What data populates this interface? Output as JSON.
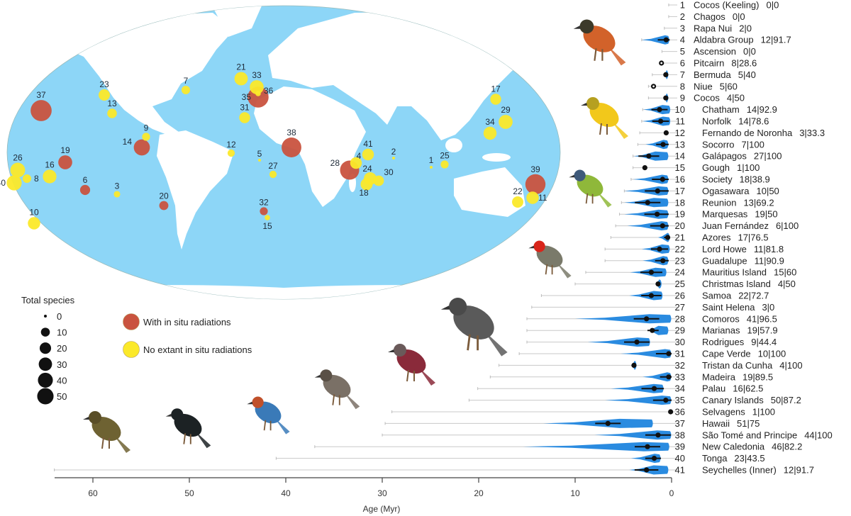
{
  "colors": {
    "ocean": "#8dd6f7",
    "land": "#ffffff",
    "radiation": "#c9533f",
    "no_radiation": "#fbe92a",
    "violin": "#2a8be0",
    "whisker": "#c8c8c8"
  },
  "legend": {
    "size_title": "Total species",
    "size_levels": [
      "0",
      "10",
      "20",
      "30",
      "40",
      "50"
    ],
    "color_items": [
      {
        "label": "With in situ radiations",
        "color": "#c9533f"
      },
      {
        "label": "No extant in situ radiations",
        "color": "#fbe92a"
      }
    ]
  },
  "chart_data": {
    "type": "violin",
    "xlabel": "Age (Myr)",
    "xlim": [
      64,
      0
    ],
    "xticks": [
      "60",
      "50",
      "40",
      "30",
      "20",
      "10",
      "0"
    ],
    "islands": [
      {
        "n": "1",
        "name": "Cocos (Keeling)",
        "stat": "0|0",
        "total": 0,
        "radiation": false,
        "max_age": 0.3,
        "violin": null,
        "median": null
      },
      {
        "n": "2",
        "name": "Chagos",
        "stat": "0|0",
        "total": 0,
        "radiation": false,
        "max_age": 0.3,
        "violin": null,
        "median": null
      },
      {
        "n": "3",
        "name": "Rapa Nui",
        "stat": "2|0",
        "total": 2,
        "radiation": false,
        "max_age": 0.75,
        "violin": null,
        "median": null
      },
      {
        "n": "4",
        "name": "Aldabra Group",
        "stat": "12|91.7",
        "total": 12,
        "radiation": false,
        "max_age": 3.1,
        "violin": [
          3.1,
          0.2
        ],
        "median": 0.56
      },
      {
        "n": "5",
        "name": "Ascension",
        "stat": "0|0",
        "total": 0,
        "radiation": false,
        "max_age": 1.0,
        "violin": null,
        "median": null
      },
      {
        "n": "6",
        "name": "Pitcairn",
        "stat": "8|28.6",
        "total": 8,
        "radiation": true,
        "max_age": 1.1,
        "violin": null,
        "median": 1.05
      },
      {
        "n": "7",
        "name": "Bermuda",
        "stat": "5|40",
        "total": 5,
        "radiation": false,
        "max_age": 2.0,
        "violin": [
          0.8,
          0.3
        ],
        "median": 0.6
      },
      {
        "n": "8",
        "name": "Niue",
        "stat": "5|60",
        "total": 5,
        "radiation": false,
        "max_age": 2.4,
        "violin": null,
        "median": 1.87
      },
      {
        "n": "9",
        "name": "Cocos",
        "stat": "4|50",
        "total": 4,
        "radiation": false,
        "max_age": 2.4,
        "violin": [
          0.8,
          0.3
        ],
        "median": 0.6
      },
      {
        "n": "10",
        "name": "Chatham",
        "stat": "14|92.9",
        "total": 14,
        "radiation": false,
        "max_age": 3.0,
        "violin": [
          2.9,
          0.1
        ],
        "median": 1.25
      },
      {
        "n": "11",
        "name": "Norfolk",
        "stat": "14|78.6",
        "total": 14,
        "radiation": false,
        "max_age": 3.1,
        "violin": [
          3.0,
          0.1
        ],
        "median": 1.13
      },
      {
        "n": "12",
        "name": "Fernando de Noronha",
        "stat": "3|33.3",
        "total": 3,
        "radiation": false,
        "max_age": 3.3,
        "violin": null,
        "median": 0.56
      },
      {
        "n": "13",
        "name": "Socorro",
        "stat": "7|100",
        "total": 7,
        "radiation": false,
        "max_age": 3.5,
        "violin": [
          2.7,
          0.3
        ],
        "median": 0.88
      },
      {
        "n": "14",
        "name": "Galápagos",
        "stat": "27|100",
        "total": 27,
        "radiation": true,
        "max_age": 4.0,
        "violin": [
          3.9,
          0.3
        ],
        "median": 2.36
      },
      {
        "n": "15",
        "name": "Gough",
        "stat": "1|100",
        "total": 1,
        "radiation": false,
        "max_age": 4.0,
        "violin": null,
        "median": 2.77
      },
      {
        "n": "16",
        "name": "Society",
        "stat": "18|38.9",
        "total": 18,
        "radiation": false,
        "max_age": 4.2,
        "violin": [
          4.0,
          0.3
        ],
        "median": 0.93
      },
      {
        "n": "17",
        "name": "Ogasawara",
        "stat": "10|50",
        "total": 10,
        "radiation": false,
        "max_age": 4.9,
        "violin": [
          4.9,
          0.3
        ],
        "median": 1.45
      },
      {
        "n": "18",
        "name": "Reunion",
        "stat": "13|69.2",
        "total": 13,
        "radiation": false,
        "max_age": 5.2,
        "violin": [
          4.9,
          0.3
        ],
        "median": 2.48
      },
      {
        "n": "19",
        "name": "Marquesas",
        "stat": "19|50",
        "total": 19,
        "radiation": true,
        "max_age": 5.4,
        "violin": [
          4.9,
          0.3
        ],
        "median": 1.5
      },
      {
        "n": "20",
        "name": "Juan Fernández",
        "stat": "6|100",
        "total": 6,
        "radiation": true,
        "max_age": 5.8,
        "violin": [
          4.6,
          0.3
        ],
        "median": 0.93
      },
      {
        "n": "21",
        "name": "Azores",
        "stat": "17|76.5",
        "total": 17,
        "radiation": false,
        "max_age": 6.3,
        "violin": [
          1.4,
          0.15
        ],
        "median": 0.4
      },
      {
        "n": "22",
        "name": "Lord Howe",
        "stat": "11|81.8",
        "total": 11,
        "radiation": false,
        "max_age": 6.9,
        "violin": [
          3.1,
          0.15
        ],
        "median": 1.25
      },
      {
        "n": "23",
        "name": "Guadalupe",
        "stat": "11|90.9",
        "total": 11,
        "radiation": false,
        "max_age": 6.9,
        "violin": [
          3.0,
          0.3
        ],
        "median": 0.9
      },
      {
        "n": "24",
        "name": "Mauritius Island",
        "stat": "15|60",
        "total": 15,
        "radiation": false,
        "max_age": 8.9,
        "violin": [
          4.3,
          0.5
        ],
        "median": 2.1
      },
      {
        "n": "25",
        "name": "Christmas Island",
        "stat": "4|50",
        "total": 4,
        "radiation": false,
        "max_age": 10,
        "violin": [
          1.7,
          1.0
        ],
        "median": 1.4
      },
      {
        "n": "26",
        "name": "Samoa",
        "stat": "22|72.7",
        "total": 22,
        "radiation": false,
        "max_age": 13.5,
        "violin": [
          4.4,
          0.9
        ],
        "median": 2.1
      },
      {
        "n": "27",
        "name": "Saint Helena",
        "stat": "3|0",
        "total": 3,
        "radiation": false,
        "max_age": 14.5,
        "violin": null,
        "median": null
      },
      {
        "n": "28",
        "name": "Comoros",
        "stat": "41|96.5",
        "total": 41,
        "radiation": true,
        "max_age": 15,
        "violin": [
          10,
          0
        ],
        "median": 2.6
      },
      {
        "n": "29",
        "name": "Marianas",
        "stat": "19|57.9",
        "total": 19,
        "radiation": false,
        "max_age": 15,
        "violin": [
          2.5,
          0.3
        ],
        "median": 2.0
      },
      {
        "n": "30",
        "name": "Rodrigues",
        "stat": "9|44.4",
        "total": 9,
        "radiation": false,
        "max_age": 15,
        "violin": [
          8.7,
          2.2
        ],
        "median": 3.6
      },
      {
        "n": "31",
        "name": "Cape Verde",
        "stat": "10|100",
        "total": 10,
        "radiation": false,
        "max_age": 15.8,
        "violin": [
          5.3,
          0
        ],
        "median": 0.3
      },
      {
        "n": "32",
        "name": "Tristan da Cunha",
        "stat": "4|100",
        "total": 4,
        "radiation": true,
        "max_age": 17.9,
        "violin": [
          4.2,
          3.6
        ],
        "median": 3.9
      },
      {
        "n": "33",
        "name": "Madeira",
        "stat": "19|89.5",
        "total": 19,
        "radiation": false,
        "max_age": 18.8,
        "violin": [
          3.0,
          0
        ],
        "median": 0.3
      },
      {
        "n": "34",
        "name": "Palau",
        "stat": "16|62.5",
        "total": 16,
        "radiation": false,
        "max_age": 20.1,
        "violin": [
          6.3,
          0.8
        ],
        "median": 1.8
      },
      {
        "n": "35",
        "name": "Canary Islands",
        "stat": "50|87.2",
        "total": 50,
        "radiation": true,
        "max_age": 21,
        "violin": [
          6.9,
          0
        ],
        "median": 0.6
      },
      {
        "n": "36",
        "name": "Selvagens",
        "stat": "1|100",
        "total": 1,
        "radiation": false,
        "max_age": 29,
        "violin": null,
        "median": 0.1
      },
      {
        "n": "37",
        "name": "Hawaii",
        "stat": "51|75",
        "total": 51,
        "radiation": true,
        "max_age": 29.7,
        "violin": [
          13.3,
          1.9
        ],
        "median": 6.6
      },
      {
        "n": "38",
        "name": "São Tomé and Principe",
        "stat": "44|100",
        "total": 44,
        "radiation": true,
        "max_age": 30,
        "violin": [
          8,
          0
        ],
        "median": 1.4
      },
      {
        "n": "39",
        "name": "New Caledonia",
        "stat": "46|82.2",
        "total": 46,
        "radiation": true,
        "max_age": 37,
        "violin": [
          15.4,
          0.2
        ],
        "median": 2.5
      },
      {
        "n": "40",
        "name": "Tonga",
        "stat": "23|43.5",
        "total": 23,
        "radiation": false,
        "max_age": 41,
        "violin": [
          4.2,
          1.1
        ],
        "median": 1.8
      },
      {
        "n": "41",
        "name": "Seychelles (Inner)",
        "stat": "12|91.7",
        "total": 12,
        "radiation": false,
        "max_age": 64,
        "violin": [
          4.4,
          0.3
        ],
        "median": 2.6
      }
    ]
  }
}
